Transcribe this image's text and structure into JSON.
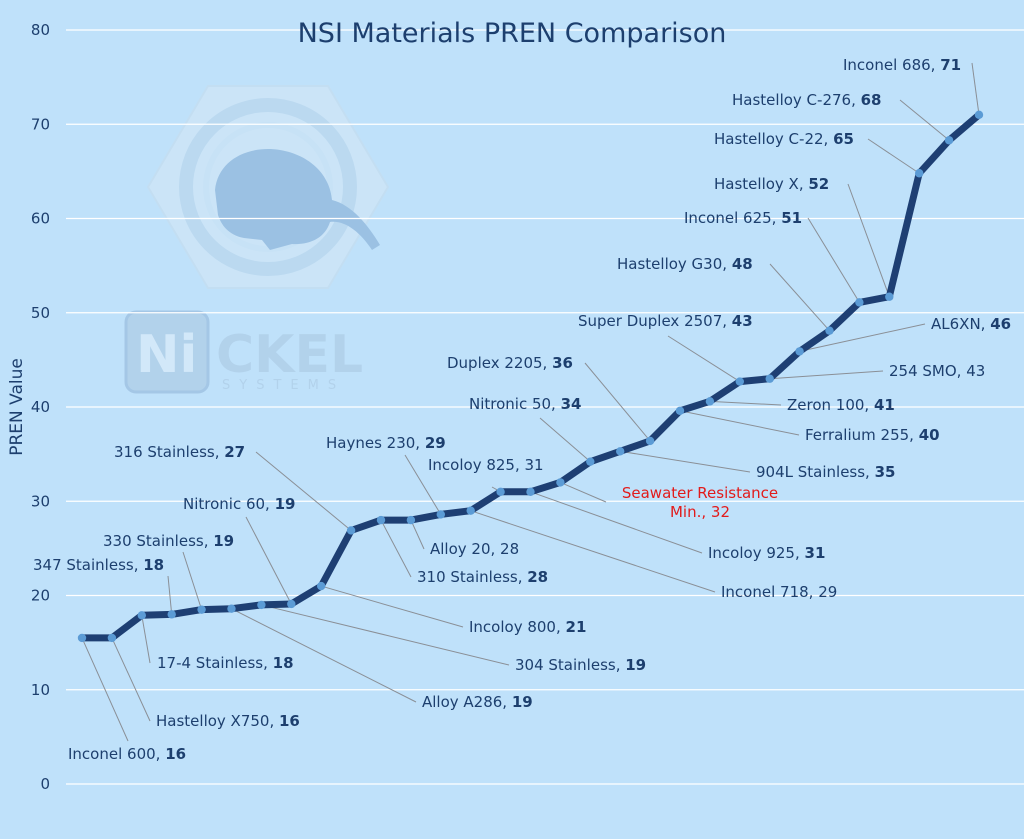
{
  "chart_data": {
    "type": "line",
    "title": "NSI Materials PREN Comparison",
    "xlabel": "",
    "ylabel": "PREN Value",
    "ylim": [
      0,
      80
    ],
    "yticks": [
      "0",
      "10",
      "20",
      "30",
      "40",
      "50",
      "60",
      "70",
      "80"
    ],
    "grid": true,
    "colors": {
      "background": "#bfe1fa",
      "line": "#1e3f73",
      "marker": "#5b9bd5",
      "grid": "#ffffff",
      "text": "#1d3f6e",
      "annotation": "#e21b1b",
      "leader": "#8a8f96"
    },
    "series": [
      {
        "points": [
          {
            "name": "Inconel 600",
            "label": "Inconel 600, ",
            "value": 16,
            "plot": 15.5
          },
          {
            "name": "Hastelloy X750",
            "label": "Hastelloy X750, ",
            "value": 16,
            "plot": 15.5
          },
          {
            "name": "17-4 Stainless",
            "label": "17-4 Stainless, ",
            "value": 18,
            "plot": 17.9
          },
          {
            "name": "347 Stainless",
            "label": "347 Stainless, ",
            "value": 18,
            "plot": 18.0
          },
          {
            "name": "330 Stainless",
            "label": "330 Stainless, ",
            "value": 19,
            "plot": 18.5
          },
          {
            "name": "Alloy A286",
            "label": "Alloy A286, ",
            "value": 19,
            "plot": 18.6
          },
          {
            "name": "304 Stainless",
            "label": "304 Stainless, ",
            "value": 19,
            "plot": 19.0
          },
          {
            "name": "Nitronic 60",
            "label": "Nitronic 60, ",
            "value": 19,
            "plot": 19.1
          },
          {
            "name": "Incoloy 800",
            "label": "Incoloy 800, ",
            "value": 21,
            "plot": 21.0
          },
          {
            "name": "316 Stainless",
            "label": "316 Stainless, ",
            "value": 27,
            "plot": 26.9
          },
          {
            "name": "310 Stainless",
            "label": "310 Stainless, ",
            "value": 28,
            "plot": 28.0
          },
          {
            "name": "Alloy 20",
            "label": "Alloy 20, ",
            "value": 28,
            "plot": 28.0,
            "bold": false
          },
          {
            "name": "Haynes 230",
            "label": "Haynes 230, ",
            "value": 29,
            "plot": 28.6
          },
          {
            "name": "Inconel 718",
            "label": "Inconel 718, ",
            "value": 29,
            "plot": 29.0,
            "bold": false
          },
          {
            "name": "Incoloy 825",
            "label": "Incoloy 825, ",
            "value": 31,
            "plot": 31.0,
            "bold": false
          },
          {
            "name": "Incoloy 925",
            "label": "Incoloy 925, ",
            "value": 31,
            "plot": 31.0
          },
          {
            "name": "Seawater Resistance Min.",
            "value": 32,
            "plot": 32.0,
            "annotation": true
          },
          {
            "name": "Nitronic 50",
            "label": "Nitronic 50, ",
            "value": 34,
            "plot": 34.2
          },
          {
            "name": "904L Stainless",
            "label": "904L Stainless, ",
            "value": 35,
            "plot": 35.3
          },
          {
            "name": "Duplex 2205",
            "label": "Duplex 2205, ",
            "value": 36,
            "plot": 36.4
          },
          {
            "name": "Ferralium 255",
            "label": "Ferralium 255, ",
            "value": 40,
            "plot": 39.6
          },
          {
            "name": "Zeron 100",
            "label": "Zeron 100, ",
            "value": 41,
            "plot": 40.6
          },
          {
            "name": "Super Duplex 2507",
            "label": "Super Duplex 2507, ",
            "value": 43,
            "plot": 42.7
          },
          {
            "name": "254 SMO",
            "label": "254 SMO, ",
            "value": 43,
            "plot": 43.0,
            "bold": false
          },
          {
            "name": "AL6XN",
            "label": "AL6XN, ",
            "value": 46,
            "plot": 45.9
          },
          {
            "name": "Hastelloy G30",
            "label": "Hastelloy G30, ",
            "value": 48,
            "plot": 48.1
          },
          {
            "name": "Inconel 625",
            "label": "Inconel 625, ",
            "value": 51,
            "plot": 51.1
          },
          {
            "name": "Hastelloy X",
            "label": "Hastelloy X, ",
            "value": 52,
            "plot": 51.7
          },
          {
            "name": "Hastelloy C-22",
            "label": "Hastelloy C-22, ",
            "value": 65,
            "plot": 64.8
          },
          {
            "name": "Hastelloy C-276",
            "label": "Hastelloy C-276, ",
            "value": 68,
            "plot": 68.3
          },
          {
            "name": "Inconel 686",
            "label": "Inconel 686, ",
            "value": 71,
            "plot": 71.0
          }
        ]
      }
    ],
    "annotation": {
      "line1": "Seawater Resistance",
      "line2": "Min., 32"
    },
    "logo": {
      "text": "NiCKEL",
      "subtext": "SYSTEMS"
    }
  }
}
